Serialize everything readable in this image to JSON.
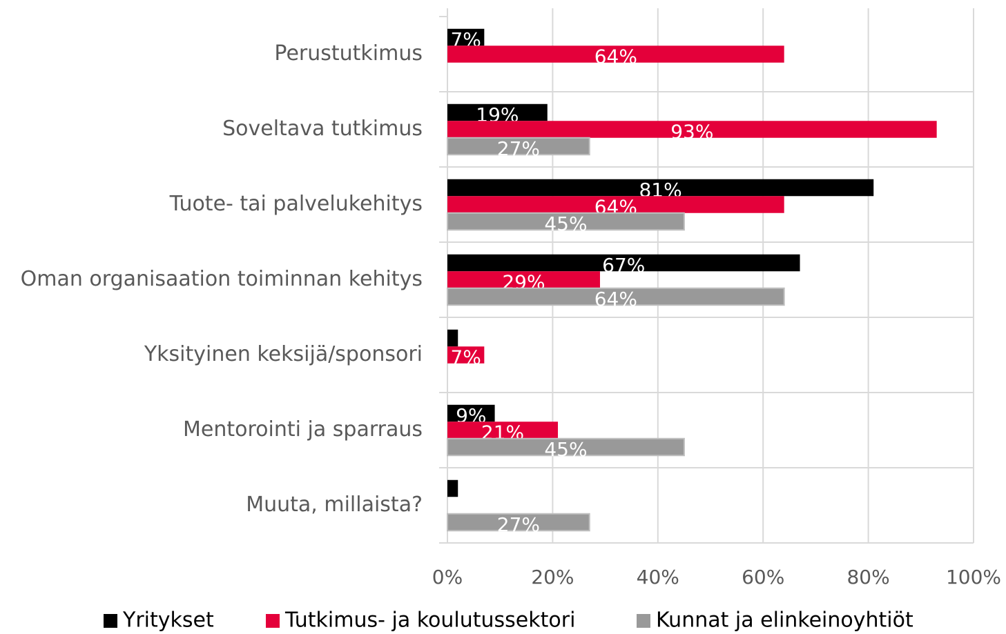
{
  "chart_data": {
    "type": "bar",
    "orientation": "horizontal",
    "categories": [
      "Perustutkimus",
      "Soveltava tutkimus",
      "Tuote- tai palvelukehitys",
      "Oman organisaation toiminnan kehitys",
      "Yksityinen keksijä/sponsori",
      "Mentorointi ja sparraus",
      "Muuta, millaista?"
    ],
    "series": [
      {
        "name": "Yritykset",
        "color": "#000000",
        "values": [
          7,
          19,
          81,
          67,
          2,
          9,
          2
        ],
        "value_labels": [
          "7%",
          "19%",
          "81%",
          "67%",
          null,
          "9%",
          null
        ]
      },
      {
        "name": "Tutkimus- ja koulutussektori",
        "color": "#e4003a",
        "values": [
          64,
          93,
          64,
          29,
          7,
          21,
          0
        ],
        "value_labels": [
          "64%",
          "93%",
          "64%",
          "29%",
          "7%",
          "21%",
          null
        ]
      },
      {
        "name": "Kunnat ja elinkeinoyhtiöt",
        "color": "#999999",
        "values": [
          0,
          27,
          45,
          64,
          0,
          45,
          27
        ],
        "value_labels": [
          null,
          "27%",
          "45%",
          "64%",
          null,
          "45%",
          "27%"
        ]
      }
    ],
    "xlim": [
      0,
      100
    ],
    "xticks": [
      {
        "value": 0,
        "label": "0%"
      },
      {
        "value": 20,
        "label": "20%"
      },
      {
        "value": 40,
        "label": "40%"
      },
      {
        "value": 60,
        "label": "60%"
      },
      {
        "value": 80,
        "label": "80%"
      },
      {
        "value": 100,
        "label": "100%"
      }
    ],
    "grid": true,
    "legend": "bottom"
  }
}
